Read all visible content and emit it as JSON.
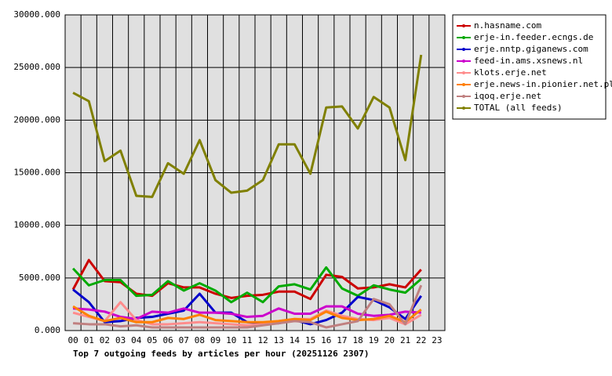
{
  "chart_data": {
    "type": "line",
    "title": "Top 7 outgoing feeds by articles per hour (20251126 2307)",
    "categories": [
      "00",
      "01",
      "02",
      "03",
      "04",
      "05",
      "06",
      "07",
      "08",
      "09",
      "10",
      "11",
      "12",
      "13",
      "14",
      "15",
      "16",
      "17",
      "18",
      "19",
      "20",
      "21",
      "22",
      "23"
    ],
    "ylim": [
      0,
      30000
    ],
    "yticks": [
      {
        "value": 0,
        "label": "0.000"
      },
      {
        "value": 5000,
        "label": "5000.000"
      },
      {
        "value": 10000,
        "label": "10000.000"
      },
      {
        "value": 15000,
        "label": "15000.000"
      },
      {
        "value": 20000,
        "label": "20000.000"
      },
      {
        "value": 25000,
        "label": "25000.000"
      },
      {
        "value": 30000,
        "label": "30000.000"
      }
    ],
    "grid": true,
    "legend": "right",
    "series": [
      {
        "name": "n.hasname.com",
        "color": "#cc0000",
        "values": [
          3900,
          6700,
          4700,
          4600,
          3500,
          3300,
          4500,
          4100,
          4100,
          3500,
          3100,
          3300,
          3400,
          3700,
          3700,
          3000,
          5300,
          5100,
          4000,
          4100,
          4400,
          4100,
          5800,
          null
        ]
      },
      {
        "name": "erje-in.feeder.ecngs.de",
        "color": "#00aa00",
        "values": [
          5900,
          4300,
          4800,
          4800,
          3300,
          3400,
          4700,
          3800,
          4500,
          3800,
          2700,
          3600,
          2700,
          4200,
          4400,
          3900,
          6000,
          4000,
          3300,
          4300,
          3900,
          3600,
          4900,
          null
        ]
      },
      {
        "name": "erje.nntp.giganews.com",
        "color": "#0000cc",
        "values": [
          3900,
          2700,
          800,
          900,
          1200,
          1300,
          1600,
          1900,
          3500,
          1700,
          1700,
          800,
          700,
          700,
          1000,
          600,
          1000,
          1700,
          3200,
          2900,
          2200,
          1100,
          3300,
          null
        ]
      },
      {
        "name": "feed-in.ams.xsnews.nl",
        "color": "#cc00cc",
        "values": [
          2100,
          2000,
          1800,
          1300,
          1100,
          1800,
          1700,
          2100,
          1700,
          1700,
          1600,
          1300,
          1400,
          2100,
          1600,
          1600,
          2300,
          2300,
          1600,
          1400,
          1500,
          1800,
          1700,
          null
        ]
      },
      {
        "name": "klots.erje.net",
        "color": "#ff8c8c",
        "values": [
          1700,
          1300,
          900,
          2700,
          1000,
          600,
          600,
          700,
          800,
          700,
          600,
          500,
          600,
          900,
          1100,
          1100,
          1900,
          1400,
          1100,
          1000,
          1200,
          600,
          1500,
          null
        ]
      },
      {
        "name": "erje.news-in.pionier.net.pl",
        "color": "#ff8000",
        "values": [
          2300,
          1400,
          900,
          1200,
          800,
          800,
          1200,
          1100,
          1500,
          1000,
          900,
          800,
          800,
          900,
          1100,
          1000,
          1800,
          1200,
          1000,
          1100,
          1400,
          800,
          2000,
          null
        ]
      },
      {
        "name": "iqoq.erje.net",
        "color": "#c08080",
        "values": [
          700,
          600,
          600,
          400,
          500,
          300,
          300,
          300,
          300,
          300,
          300,
          300,
          500,
          700,
          900,
          800,
          300,
          600,
          900,
          3000,
          2500,
          600,
          4300,
          null
        ]
      },
      {
        "name": "TOTAL (all feeds)",
        "color": "#808000",
        "values": [
          22600,
          21800,
          16100,
          17100,
          12800,
          12700,
          15900,
          14900,
          18100,
          14300,
          13100,
          13300,
          14300,
          17700,
          17700,
          14900,
          21200,
          21300,
          19200,
          22200,
          21200,
          16200,
          26200,
          null
        ]
      }
    ]
  }
}
